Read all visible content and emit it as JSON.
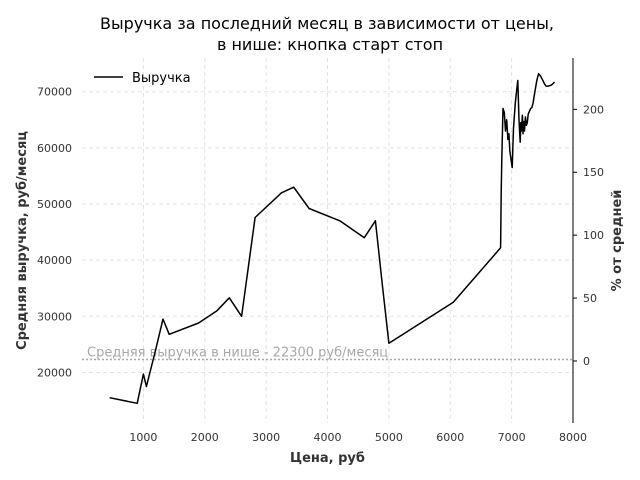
{
  "chart_data": {
    "type": "line",
    "title": [
      "Выручка за последний месяц в зависимости от цены,",
      "в нише: кнопка старт стоп"
    ],
    "xlabel": "Цена, руб",
    "ylabel": "Средняя выручка, руб/месяц",
    "y2label": "% от средней",
    "xlim": [
      0,
      8000
    ],
    "ylim": [
      11000,
      76000
    ],
    "y2lim": [
      -49.3,
      240.8
    ],
    "xticks": [
      1000,
      2000,
      3000,
      4000,
      5000,
      6000,
      7000,
      8000
    ],
    "yticks": [
      20000,
      30000,
      40000,
      50000,
      60000,
      70000
    ],
    "y2ticks": [
      0,
      50,
      100,
      150,
      200
    ],
    "grid": true,
    "legend_position": "top-left",
    "reference_line": {
      "y": 22300,
      "label": "Средняя выручка в нише - 22300 руб/месяц",
      "color": "#a8a8a8"
    },
    "colors": {
      "line": "#000000",
      "grid": "#e3e3e3",
      "reference": "#a8a8a8"
    },
    "series": [
      {
        "name": "Выручка",
        "x": [
          450,
          900,
          1000,
          1050,
          1200,
          1320,
          1420,
          1900,
          2200,
          2400,
          2600,
          2820,
          3250,
          3450,
          3700,
          4200,
          4600,
          4780,
          4900,
          5000,
          6050,
          6820,
          6825,
          6830,
          6840,
          6860,
          6880,
          6900,
          6920,
          6940,
          6955,
          6970,
          6990,
          7010,
          7030,
          7060,
          7080,
          7100,
          7120,
          7140,
          7150,
          7160,
          7175,
          7185,
          7195,
          7210,
          7225,
          7240,
          7255,
          7270,
          7290,
          7310,
          7330,
          7350,
          7380,
          7410,
          7440,
          7470,
          7500,
          7530,
          7560,
          7600,
          7650,
          7700
        ],
        "y": [
          15500,
          14500,
          19700,
          17500,
          24000,
          29500,
          26800,
          28800,
          31000,
          33300,
          30000,
          47600,
          52000,
          53000,
          49200,
          47000,
          44000,
          47000,
          35000,
          25200,
          32500,
          42200,
          47000,
          52000,
          58000,
          67000,
          66300,
          63000,
          65000,
          61500,
          62500,
          59500,
          58000,
          56500,
          63500,
          68000,
          70000,
          72000,
          65000,
          61000,
          64500,
          63000,
          65800,
          62500,
          64700,
          63000,
          65500,
          64000,
          64500,
          66000,
          66500,
          67000,
          67200,
          68000,
          70000,
          72000,
          73200,
          72800,
          72200,
          71500,
          71000,
          71000,
          71200,
          71700
        ]
      }
    ]
  }
}
